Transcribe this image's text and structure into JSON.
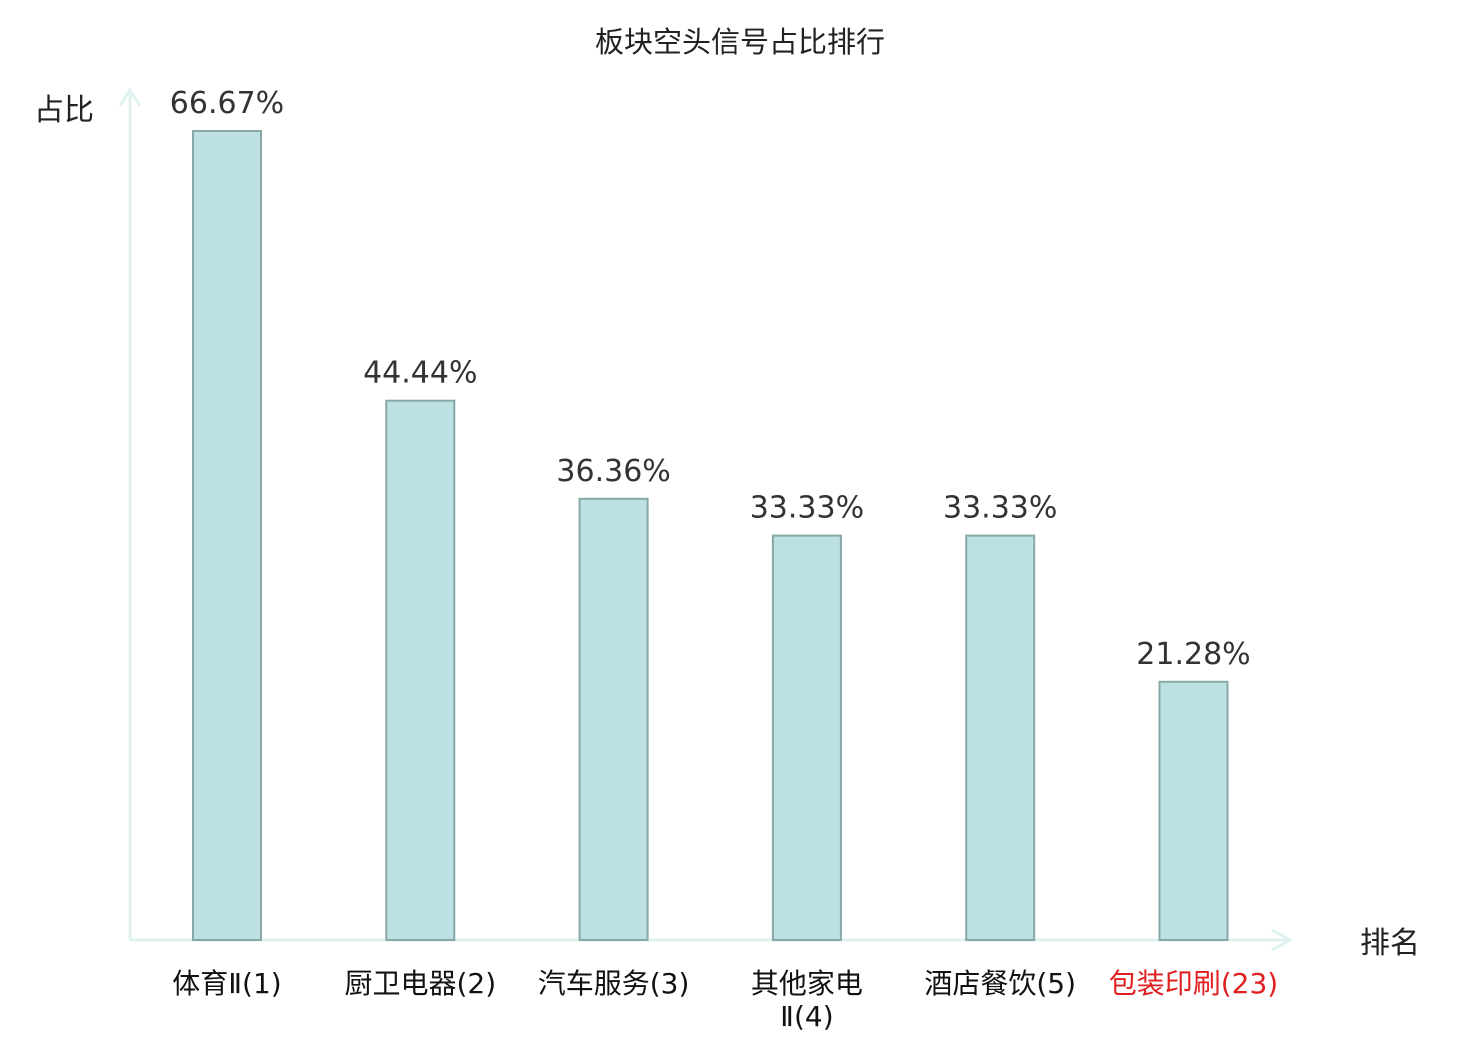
{
  "chart_data": {
    "type": "bar",
    "title": "板块空头信号占比排行",
    "ylabel": "占比",
    "xlabel": "排名",
    "categories": [
      [
        "体育Ⅱ(1)"
      ],
      [
        "厨卫电器(2)"
      ],
      [
        "汽车服务(3)"
      ],
      [
        "其他家电",
        "Ⅱ(4)"
      ],
      [
        "酒店餐饮(5)"
      ],
      [
        "包装印刷(23)"
      ]
    ],
    "highlight": [
      false,
      false,
      false,
      false,
      false,
      true
    ],
    "values": [
      66.67,
      44.44,
      36.36,
      33.33,
      33.33,
      21.28
    ],
    "value_labels": [
      "66.67%",
      "44.44%",
      "36.36%",
      "33.33%",
      "33.33%",
      "21.28%"
    ],
    "ylim": [
      0,
      66.67
    ],
    "grid": false,
    "legend": "none"
  },
  "colors": {
    "bar_fill": "#bde0e3",
    "bar_stroke": "#88a8a8",
    "axis": "#e0f2f0",
    "highlight": "#e02020",
    "text": "#222222"
  }
}
